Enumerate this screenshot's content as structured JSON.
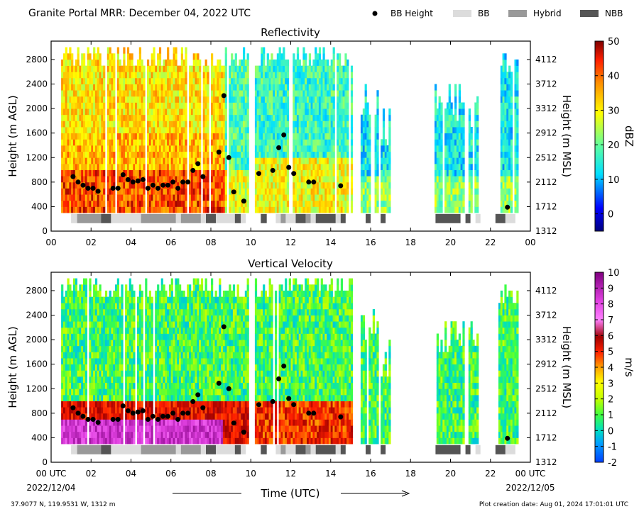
{
  "header": {
    "title": "Granite Portal MRR:  December 04, 2022 UTC"
  },
  "legend": {
    "items": [
      {
        "label": "BB Height",
        "kind": "marker",
        "color": "#000000"
      },
      {
        "label": "BB",
        "kind": "patch",
        "color": "#dcdcdc"
      },
      {
        "label": "Hybrid",
        "kind": "patch",
        "color": "#999999"
      },
      {
        "label": "NBB",
        "kind": "patch",
        "color": "#555555"
      }
    ]
  },
  "colors": {
    "bb": "#dcdcdc",
    "hybrid": "#999999",
    "nbb": "#555555",
    "marker": "#000000"
  },
  "footer": {
    "left_note": "37.9077 N, 119.9531 W, 1312 m",
    "right_note": "Plot creation date: Aug 01, 2024 17:01:01 UTC",
    "xlabel": "Time (UTC)",
    "start_date": "2022/12/04",
    "end_date": "2022/12/05"
  },
  "chart_data": [
    {
      "type": "heatmap",
      "title": "Reflectivity",
      "ylabel": "Height (m AGL)",
      "ylabel_right": "Height (m MSL)",
      "colorbar_label": "dBZ",
      "xlim": [
        0,
        24
      ],
      "ylim": [
        0,
        3100
      ],
      "x_ticks": [
        "00",
        "02",
        "04",
        "06",
        "08",
        "10",
        "12",
        "14",
        "16",
        "18",
        "20",
        "22",
        "00"
      ],
      "y_ticks": [
        0,
        400,
        800,
        1200,
        1600,
        2000,
        2400,
        2800
      ],
      "y_ticks_right": [
        1312,
        1712,
        2112,
        2512,
        2912,
        3312,
        3712,
        4112
      ],
      "colorbar_ticks": [
        0,
        10,
        20,
        30,
        40,
        50
      ],
      "colorbar_range": [
        -5,
        50
      ]
    },
    {
      "type": "heatmap",
      "title": "Vertical Velocity",
      "ylabel": "Height (m AGL)",
      "ylabel_right": "Height (m MSL)",
      "colorbar_label": "m/s",
      "xlim": [
        0,
        24
      ],
      "ylim": [
        0,
        3100
      ],
      "x_ticks": [
        "00 UTC",
        "02",
        "04",
        "06",
        "08",
        "10",
        "12",
        "14",
        "16",
        "18",
        "20",
        "22",
        "00 UTC"
      ],
      "y_ticks": [
        0,
        400,
        800,
        1200,
        1600,
        2000,
        2400,
        2800
      ],
      "y_ticks_right": [
        1312,
        1712,
        2112,
        2512,
        2912,
        3312,
        3712,
        4112
      ],
      "colorbar_ticks": [
        -2,
        -1,
        0,
        1,
        2,
        3,
        4,
        5,
        6,
        7,
        8,
        9,
        10
      ],
      "colorbar_range": [
        -2,
        10
      ]
    }
  ],
  "bright_band_points": [
    {
      "t": 1.1,
      "h": 890
    },
    {
      "t": 1.35,
      "h": 800
    },
    {
      "t": 1.6,
      "h": 750
    },
    {
      "t": 1.85,
      "h": 700
    },
    {
      "t": 2.1,
      "h": 700
    },
    {
      "t": 2.35,
      "h": 650
    },
    {
      "t": 3.1,
      "h": 700
    },
    {
      "t": 3.35,
      "h": 700
    },
    {
      "t": 3.6,
      "h": 920
    },
    {
      "t": 3.85,
      "h": 840
    },
    {
      "t": 4.1,
      "h": 800
    },
    {
      "t": 4.35,
      "h": 820
    },
    {
      "t": 4.6,
      "h": 840
    },
    {
      "t": 4.85,
      "h": 700
    },
    {
      "t": 5.1,
      "h": 750
    },
    {
      "t": 5.35,
      "h": 700
    },
    {
      "t": 5.6,
      "h": 750
    },
    {
      "t": 5.85,
      "h": 750
    },
    {
      "t": 6.1,
      "h": 800
    },
    {
      "t": 6.35,
      "h": 700
    },
    {
      "t": 6.6,
      "h": 800
    },
    {
      "t": 6.85,
      "h": 800
    },
    {
      "t": 7.1,
      "h": 990
    },
    {
      "t": 7.35,
      "h": 1100
    },
    {
      "t": 7.6,
      "h": 890
    },
    {
      "t": 8.4,
      "h": 1290
    },
    {
      "t": 8.65,
      "h": 2210
    },
    {
      "t": 8.9,
      "h": 1200
    },
    {
      "t": 9.15,
      "h": 640
    },
    {
      "t": 9.65,
      "h": 490
    },
    {
      "t": 10.4,
      "h": 940
    },
    {
      "t": 11.1,
      "h": 990
    },
    {
      "t": 11.4,
      "h": 1360
    },
    {
      "t": 11.65,
      "h": 1570
    },
    {
      "t": 11.9,
      "h": 1040
    },
    {
      "t": 12.15,
      "h": 940
    },
    {
      "t": 12.9,
      "h": 800
    },
    {
      "t": 13.15,
      "h": 800
    },
    {
      "t": 14.5,
      "h": 740
    },
    {
      "t": 22.85,
      "h": 390
    }
  ],
  "bright_band_classes": [
    {
      "start": 1.0,
      "end": 1.3,
      "class": "BB"
    },
    {
      "start": 1.3,
      "end": 2.5,
      "class": "Hybrid"
    },
    {
      "start": 2.5,
      "end": 3.0,
      "class": "NBB"
    },
    {
      "start": 3.0,
      "end": 4.5,
      "class": "BB"
    },
    {
      "start": 4.5,
      "end": 6.25,
      "class": "Hybrid"
    },
    {
      "start": 6.25,
      "end": 6.5,
      "class": "BB"
    },
    {
      "start": 6.5,
      "end": 7.5,
      "class": "Hybrid"
    },
    {
      "start": 7.5,
      "end": 7.75,
      "class": "BB"
    },
    {
      "start": 7.75,
      "end": 8.25,
      "class": "NBB"
    },
    {
      "start": 8.25,
      "end": 9.2,
      "class": "BB"
    },
    {
      "start": 9.2,
      "end": 9.5,
      "class": "NBB"
    },
    {
      "start": 9.5,
      "end": 9.75,
      "class": "BB"
    },
    {
      "start": 10.5,
      "end": 10.8,
      "class": "NBB"
    },
    {
      "start": 11.25,
      "end": 11.5,
      "class": "BB"
    },
    {
      "start": 11.5,
      "end": 11.75,
      "class": "Hybrid"
    },
    {
      "start": 11.75,
      "end": 12.25,
      "class": "BB"
    },
    {
      "start": 12.25,
      "end": 12.75,
      "class": "NBB"
    },
    {
      "start": 12.75,
      "end": 13.0,
      "class": "Hybrid"
    },
    {
      "start": 13.0,
      "end": 13.25,
      "class": "BB"
    },
    {
      "start": 13.25,
      "end": 14.25,
      "class": "NBB"
    },
    {
      "start": 14.25,
      "end": 14.5,
      "class": "BB"
    },
    {
      "start": 14.5,
      "end": 14.75,
      "class": "NBB"
    },
    {
      "start": 15.75,
      "end": 16.0,
      "class": "NBB"
    },
    {
      "start": 16.5,
      "end": 16.75,
      "class": "NBB"
    },
    {
      "start": 19.25,
      "end": 20.5,
      "class": "NBB"
    },
    {
      "start": 20.75,
      "end": 21.0,
      "class": "NBB"
    },
    {
      "start": 21.25,
      "end": 21.5,
      "class": "BB"
    },
    {
      "start": 22.25,
      "end": 22.75,
      "class": "NBB"
    },
    {
      "start": 22.75,
      "end": 23.25,
      "class": "BB"
    }
  ],
  "echo_segments": [
    {
      "start": 0.5,
      "end": 9.8,
      "top": 3000
    },
    {
      "start": 10.2,
      "end": 15.0,
      "top": 3000
    },
    {
      "start": 15.5,
      "end": 16.4,
      "top": 2500
    },
    {
      "start": 16.5,
      "end": 17.0,
      "top": 2000
    },
    {
      "start": 19.2,
      "end": 20.7,
      "top": 2400
    },
    {
      "start": 20.9,
      "end": 21.4,
      "top": 2300
    },
    {
      "start": 22.4,
      "end": 23.4,
      "top": 2900
    }
  ]
}
